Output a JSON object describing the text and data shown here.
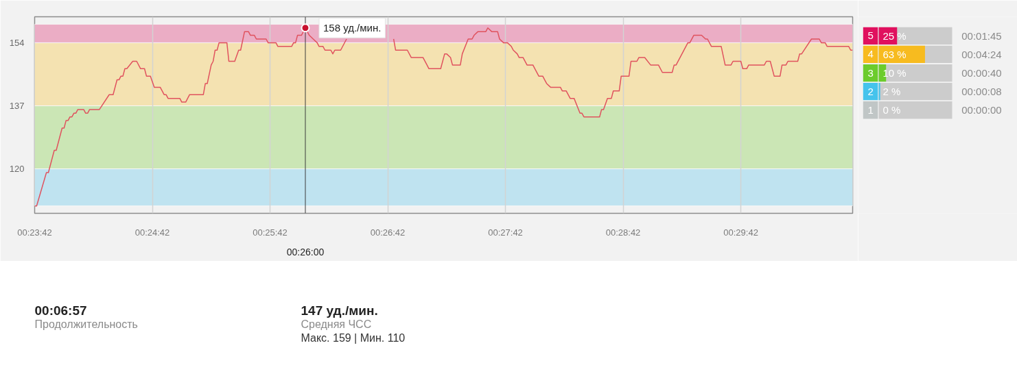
{
  "chart_data": [
    {
      "type": "line",
      "color": "#e0525e",
      "x": [
        0.395,
        0.395278,
        0.396667,
        0.396944,
        0.397778,
        0.398056,
        0.398889,
        0.399167,
        0.399444,
        0.399722,
        0.4,
        0.400278,
        0.400556,
        0.400833,
        0.401111,
        0.401944,
        0.402222,
        0.4025,
        0.402778,
        0.404167,
        0.405556,
        0.406111,
        0.406667,
        0.406944,
        0.407222,
        0.4075,
        0.407778,
        0.408056,
        0.408889,
        0.409444,
        0.41,
        0.410556,
        0.410833,
        0.411389,
        0.411944,
        0.412778,
        0.413333,
        0.413611,
        0.413889,
        0.415556,
        0.415833,
        0.416389,
        0.416944,
        0.418889,
        0.419167,
        0.419444,
        0.42,
        0.420278,
        0.420556,
        0.420833,
        0.421111,
        0.422222,
        0.4225,
        0.423333,
        0.423889,
        0.424167,
        0.424722,
        0.425278,
        0.425556,
        0.426111,
        0.426389,
        0.427778,
        0.428056,
        0.429167,
        0.429444,
        0.431389,
        0.431667,
        0.431944,
        0.432222,
        0.432778,
        0.433333,
        0.433889,
        0.434444,
        0.435,
        0.435278,
        0.435833,
        0.436111,
        0.436944,
        0.437222,
        0.4375,
        0.438333,
        0.439167,
        0.4425,
        0.445833,
        0.446111,
        0.447778,
        0.448333,
        0.45,
        0.450556,
        0.450833,
        0.4525,
        0.453056,
        0.453333,
        0.453889,
        0.454167,
        0.455278,
        0.455556,
        0.456389,
        0.456944,
        0.457222,
        0.457778,
        0.458889,
        0.459167,
        0.459722,
        0.460556,
        0.460833,
        0.461389,
        0.461944,
        0.4625,
        0.462778,
        0.463333,
        0.463611,
        0.464167,
        0.464722,
        0.465556,
        0.465833,
        0.466389,
        0.466944,
        0.467222,
        0.4675,
        0.468056,
        0.469444,
        0.469722,
        0.470278,
        0.470833,
        0.471389,
        0.472222,
        0.4725,
        0.472778,
        0.475,
        0.475278,
        0.475556,
        0.476111,
        0.476667,
        0.476944,
        0.477778,
        0.478056,
        0.479167,
        0.479444,
        0.480278,
        0.480556,
        0.481389,
        0.482222,
        0.483333,
        0.483889,
        0.485278,
        0.485556,
        0.485833,
        0.4875,
        0.487778,
        0.488333,
        0.489444,
        0.49,
        0.490278,
        0.490833,
        0.492222,
        0.492778,
        0.493611,
        0.493889,
        0.495,
        0.495278,
        0.495833,
        0.496111,
        0.498333,
        0.498611,
        0.499167,
        0.499722,
        0.500556,
        0.500833,
        0.501389,
        0.501667,
        0.503056,
        0.503333,
        0.503611,
        0.505,
        0.506111,
        0.506389,
        0.506944,
        0.507222,
        0.510278,
        0.510556,
        0.510833
      ],
      "values": [
        110,
        110,
        119,
        119,
        125,
        125,
        131,
        131,
        133,
        133,
        134,
        134,
        135,
        135,
        136,
        136,
        135,
        135,
        136,
        136,
        140,
        140,
        144,
        144,
        145,
        145,
        147,
        147,
        149,
        149,
        147,
        147,
        145,
        145,
        142,
        142,
        140,
        140,
        139,
        139,
        138,
        138,
        140,
        140,
        143,
        143,
        148,
        149,
        152,
        152,
        154,
        154,
        149,
        149,
        152,
        152,
        157,
        157,
        156,
        156,
        155,
        155,
        154,
        154,
        153,
        153,
        154,
        154,
        156,
        156,
        158,
        156,
        155,
        154,
        153,
        153,
        152,
        152,
        151,
        152,
        152,
        155,
        null,
        155,
        152,
        152,
        150,
        150,
        148,
        147,
        147,
        151,
        151,
        150,
        148,
        148,
        151,
        155,
        155,
        156,
        157,
        157,
        158,
        157,
        157,
        155,
        154,
        154,
        153,
        152,
        151,
        150,
        150,
        148,
        148,
        147,
        145,
        145,
        144,
        143,
        142,
        142,
        141,
        141,
        139,
        139,
        135,
        135,
        134,
        134,
        136,
        136,
        139,
        139,
        141,
        141,
        145,
        145,
        149,
        149,
        150,
        150,
        148,
        148,
        146,
        146,
        148,
        148,
        154,
        154,
        156,
        156,
        155,
        155,
        153,
        153,
        148,
        148,
        149,
        149,
        147,
        147,
        148,
        148,
        149,
        149,
        145,
        145,
        148,
        148,
        149,
        149,
        151,
        151,
        155,
        155,
        154,
        154,
        153,
        153,
        152,
        152
      ],
      "xlim": [
        0.395,
        0.510833
      ],
      "ylim": [
        108,
        161
      ],
      "xticks": [
        {
          "value": 0.395,
          "label": "00:23:42"
        },
        {
          "value": 0.411667,
          "label": "00:24:42"
        },
        {
          "value": 0.428333,
          "label": "00:25:42"
        },
        {
          "value": 0.445,
          "label": "00:26:42"
        },
        {
          "value": 0.461667,
          "label": "00:27:42"
        },
        {
          "value": 0.478333,
          "label": "00:28:42"
        },
        {
          "value": 0.495,
          "label": "00:29:42"
        }
      ],
      "yticks": [
        120,
        137,
        154
      ],
      "grid": "x",
      "bands": [
        {
          "axis": "y",
          "from": 110,
          "to": 120,
          "color": "#bfe3f0"
        },
        {
          "axis": "y",
          "from": 120,
          "to": 137,
          "color": "#cbe6b5"
        },
        {
          "axis": "y",
          "from": 137,
          "to": 154,
          "color": "#f4e2b1"
        },
        {
          "axis": "y",
          "from": 154,
          "to": 159,
          "color": "#ebadc5"
        }
      ],
      "ref_lines": [
        {
          "axis": "x",
          "value": 0.433333,
          "label": "00:26:00"
        }
      ],
      "annotations": [
        {
          "text": "158 уд./мин.",
          "x": 0.433333,
          "y": 158
        }
      ]
    },
    {
      "type": "bar",
      "orientation": "horizontal",
      "categories": [
        "5",
        "4",
        "3",
        "2",
        "1"
      ],
      "values": [
        25,
        63,
        10,
        2,
        0
      ],
      "colors": [
        "#e0105e",
        "#f7bb1f",
        "#6ccc2c",
        "#45c3ec",
        "#c0c6c6"
      ],
      "value_labels": [
        "25 %",
        "63 %",
        "10 %",
        "2 %",
        "0 %"
      ],
      "xlim": [
        0,
        100
      ],
      "tick_labels": "y",
      "annotations": [
        "00:01:45",
        "00:04:24",
        "00:00:40",
        "00:00:08",
        "00:00:00"
      ]
    },
    {
      "type": "other",
      "annotations": [
        "00:06:57",
        "Продолжительность",
        "147 уд./мин.",
        "Средняя ЧСС",
        "Макс. 159 | Мин. 110"
      ]
    }
  ]
}
